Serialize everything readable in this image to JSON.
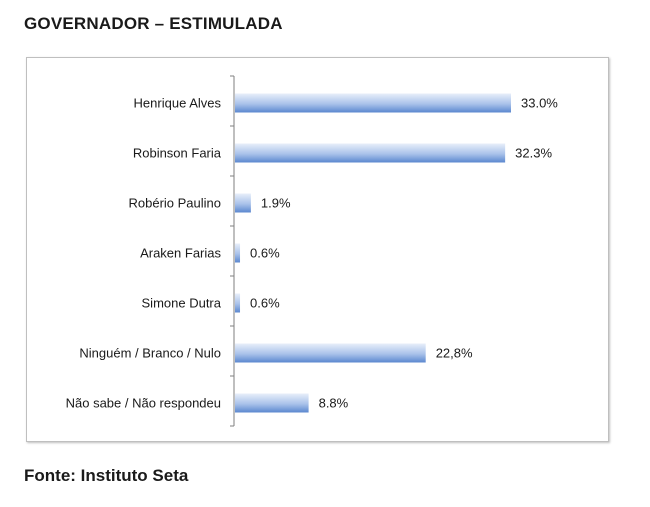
{
  "title": "GOVERNADOR – ESTIMULADA",
  "source": "Fonte: Instituto Seta",
  "colors": {
    "bar_light": "#e8effa",
    "bar_dark": "#5b87cf",
    "axis": "#7f7f7f",
    "text": "#1a1a1a"
  },
  "chart_data": {
    "type": "bar",
    "orientation": "horizontal",
    "categories": [
      "Henrique Alves",
      "Robinson Faria",
      "Robério Paulino",
      "Araken Farias",
      "Simone Dutra",
      "Ninguém / Branco / Nulo",
      "Não sabe / Não respondeu"
    ],
    "values": [
      33.0,
      32.3,
      1.9,
      0.6,
      0.6,
      22.8,
      8.8
    ],
    "value_labels": [
      "33.0%",
      "32.3%",
      "1.9%",
      "0.6%",
      "0.6%",
      "22,8%",
      "8.8%"
    ],
    "xlim": [
      0,
      33.0
    ],
    "grid": false,
    "legend": "none"
  }
}
